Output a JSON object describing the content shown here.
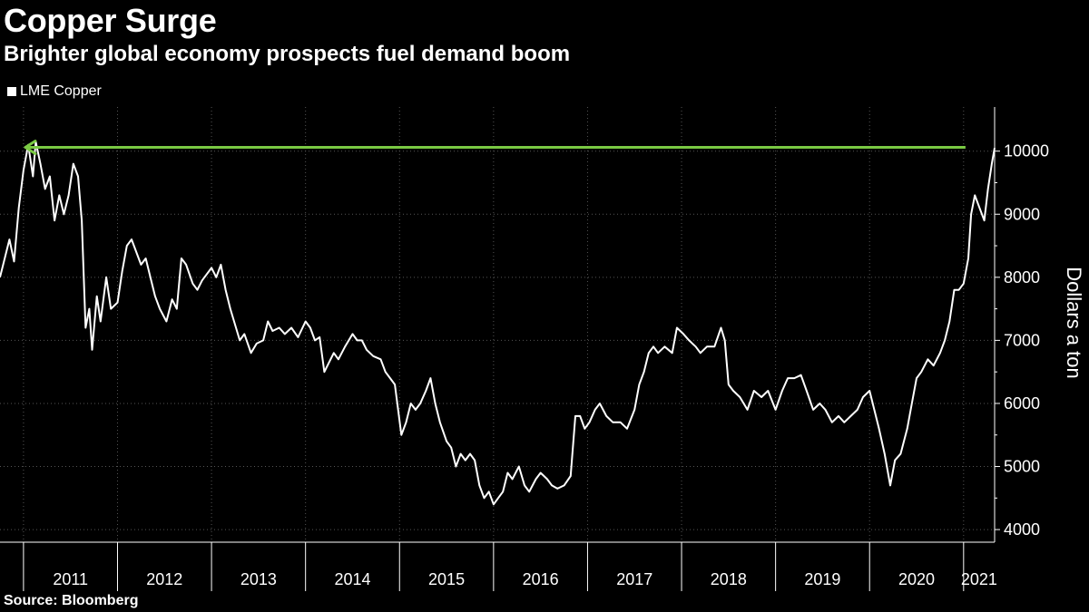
{
  "chart_data": {
    "type": "line",
    "title": "Copper Surge",
    "subtitle": "Brighter global economy prospects fuel demand boom",
    "ylabel": "Dollars a ton",
    "ylim": [
      3800,
      10700
    ],
    "xlim": [
      2010.75,
      2021.33
    ],
    "yticks": [
      4000,
      5000,
      6000,
      7000,
      8000,
      9000,
      10000
    ],
    "xtick_labels": [
      "2011",
      "2012",
      "2013",
      "2014",
      "2015",
      "2016",
      "2017",
      "2018",
      "2019",
      "2020",
      "2021"
    ],
    "grid": true,
    "legend_position": "top-left",
    "annotation": {
      "type": "arrow",
      "color": "#7ac943",
      "y": 10060,
      "x_from": 2021.02,
      "x_to": 2011.02
    },
    "series": [
      {
        "name": "LME Copper",
        "color": "#ffffff",
        "points": [
          [
            2010.75,
            8000
          ],
          [
            2010.8,
            8300
          ],
          [
            2010.85,
            8600
          ],
          [
            2010.9,
            8250
          ],
          [
            2010.95,
            9100
          ],
          [
            2011.0,
            9700
          ],
          [
            2011.05,
            10100
          ],
          [
            2011.1,
            9600
          ],
          [
            2011.13,
            10150
          ],
          [
            2011.18,
            9800
          ],
          [
            2011.23,
            9400
          ],
          [
            2011.28,
            9600
          ],
          [
            2011.33,
            8900
          ],
          [
            2011.38,
            9300
          ],
          [
            2011.43,
            9000
          ],
          [
            2011.48,
            9300
          ],
          [
            2011.53,
            9800
          ],
          [
            2011.58,
            9600
          ],
          [
            2011.62,
            8900
          ],
          [
            2011.66,
            7200
          ],
          [
            2011.7,
            7500
          ],
          [
            2011.73,
            6850
          ],
          [
            2011.78,
            7700
          ],
          [
            2011.82,
            7300
          ],
          [
            2011.88,
            8000
          ],
          [
            2011.93,
            7500
          ],
          [
            2012.0,
            7600
          ],
          [
            2012.05,
            8100
          ],
          [
            2012.1,
            8500
          ],
          [
            2012.15,
            8600
          ],
          [
            2012.2,
            8400
          ],
          [
            2012.25,
            8200
          ],
          [
            2012.3,
            8300
          ],
          [
            2012.35,
            8000
          ],
          [
            2012.4,
            7700
          ],
          [
            2012.45,
            7500
          ],
          [
            2012.52,
            7300
          ],
          [
            2012.58,
            7650
          ],
          [
            2012.63,
            7500
          ],
          [
            2012.68,
            8300
          ],
          [
            2012.73,
            8200
          ],
          [
            2012.8,
            7900
          ],
          [
            2012.85,
            7800
          ],
          [
            2012.9,
            7950
          ],
          [
            2013.0,
            8150
          ],
          [
            2013.05,
            8000
          ],
          [
            2013.1,
            8200
          ],
          [
            2013.15,
            7800
          ],
          [
            2013.2,
            7500
          ],
          [
            2013.25,
            7250
          ],
          [
            2013.3,
            7000
          ],
          [
            2013.35,
            7100
          ],
          [
            2013.42,
            6800
          ],
          [
            2013.48,
            6950
          ],
          [
            2013.55,
            7000
          ],
          [
            2013.6,
            7300
          ],
          [
            2013.65,
            7150
          ],
          [
            2013.72,
            7200
          ],
          [
            2013.78,
            7100
          ],
          [
            2013.85,
            7200
          ],
          [
            2013.92,
            7050
          ],
          [
            2014.0,
            7300
          ],
          [
            2014.05,
            7200
          ],
          [
            2014.1,
            7000
          ],
          [
            2014.15,
            7050
          ],
          [
            2014.2,
            6500
          ],
          [
            2014.25,
            6650
          ],
          [
            2014.3,
            6800
          ],
          [
            2014.35,
            6700
          ],
          [
            2014.42,
            6900
          ],
          [
            2014.5,
            7100
          ],
          [
            2014.55,
            7000
          ],
          [
            2014.6,
            7000
          ],
          [
            2014.65,
            6850
          ],
          [
            2014.72,
            6750
          ],
          [
            2014.8,
            6700
          ],
          [
            2014.85,
            6500
          ],
          [
            2014.9,
            6400
          ],
          [
            2014.95,
            6300
          ],
          [
            2015.02,
            5500
          ],
          [
            2015.07,
            5700
          ],
          [
            2015.12,
            6000
          ],
          [
            2015.17,
            5900
          ],
          [
            2015.22,
            6000
          ],
          [
            2015.28,
            6200
          ],
          [
            2015.33,
            6400
          ],
          [
            2015.38,
            6000
          ],
          [
            2015.43,
            5700
          ],
          [
            2015.5,
            5400
          ],
          [
            2015.55,
            5300
          ],
          [
            2015.6,
            5000
          ],
          [
            2015.65,
            5200
          ],
          [
            2015.7,
            5100
          ],
          [
            2015.75,
            5200
          ],
          [
            2015.8,
            5100
          ],
          [
            2015.85,
            4700
          ],
          [
            2015.9,
            4500
          ],
          [
            2015.95,
            4600
          ],
          [
            2016.0,
            4400
          ],
          [
            2016.05,
            4500
          ],
          [
            2016.1,
            4600
          ],
          [
            2016.15,
            4900
          ],
          [
            2016.2,
            4800
          ],
          [
            2016.27,
            5000
          ],
          [
            2016.33,
            4700
          ],
          [
            2016.38,
            4600
          ],
          [
            2016.45,
            4800
          ],
          [
            2016.5,
            4900
          ],
          [
            2016.57,
            4800
          ],
          [
            2016.62,
            4700
          ],
          [
            2016.68,
            4650
          ],
          [
            2016.75,
            4700
          ],
          [
            2016.82,
            4850
          ],
          [
            2016.87,
            5800
          ],
          [
            2016.92,
            5800
          ],
          [
            2016.97,
            5600
          ],
          [
            2017.02,
            5700
          ],
          [
            2017.08,
            5900
          ],
          [
            2017.13,
            6000
          ],
          [
            2017.2,
            5800
          ],
          [
            2017.27,
            5700
          ],
          [
            2017.35,
            5700
          ],
          [
            2017.42,
            5600
          ],
          [
            2017.5,
            5900
          ],
          [
            2017.55,
            6300
          ],
          [
            2017.6,
            6500
          ],
          [
            2017.65,
            6800
          ],
          [
            2017.7,
            6900
          ],
          [
            2017.75,
            6800
          ],
          [
            2017.82,
            6900
          ],
          [
            2017.9,
            6800
          ],
          [
            2017.95,
            7200
          ],
          [
            2018.02,
            7100
          ],
          [
            2018.08,
            7000
          ],
          [
            2018.15,
            6900
          ],
          [
            2018.2,
            6800
          ],
          [
            2018.27,
            6900
          ],
          [
            2018.35,
            6900
          ],
          [
            2018.42,
            7200
          ],
          [
            2018.46,
            7000
          ],
          [
            2018.5,
            6300
          ],
          [
            2018.55,
            6200
          ],
          [
            2018.62,
            6100
          ],
          [
            2018.7,
            5900
          ],
          [
            2018.77,
            6200
          ],
          [
            2018.85,
            6100
          ],
          [
            2018.92,
            6200
          ],
          [
            2019.0,
            5900
          ],
          [
            2019.07,
            6200
          ],
          [
            2019.13,
            6400
          ],
          [
            2019.2,
            6400
          ],
          [
            2019.27,
            6450
          ],
          [
            2019.33,
            6200
          ],
          [
            2019.4,
            5900
          ],
          [
            2019.47,
            6000
          ],
          [
            2019.53,
            5900
          ],
          [
            2019.6,
            5700
          ],
          [
            2019.67,
            5800
          ],
          [
            2019.73,
            5700
          ],
          [
            2019.8,
            5800
          ],
          [
            2019.87,
            5900
          ],
          [
            2019.93,
            6100
          ],
          [
            2020.0,
            6200
          ],
          [
            2020.05,
            5900
          ],
          [
            2020.1,
            5600
          ],
          [
            2020.16,
            5200
          ],
          [
            2020.22,
            4700
          ],
          [
            2020.27,
            5100
          ],
          [
            2020.33,
            5200
          ],
          [
            2020.4,
            5600
          ],
          [
            2020.45,
            6000
          ],
          [
            2020.5,
            6400
          ],
          [
            2020.55,
            6500
          ],
          [
            2020.62,
            6700
          ],
          [
            2020.68,
            6600
          ],
          [
            2020.75,
            6800
          ],
          [
            2020.8,
            7000
          ],
          [
            2020.85,
            7300
          ],
          [
            2020.9,
            7800
          ],
          [
            2020.95,
            7800
          ],
          [
            2021.0,
            7900
          ],
          [
            2021.05,
            8300
          ],
          [
            2021.08,
            9000
          ],
          [
            2021.12,
            9300
          ],
          [
            2021.17,
            9100
          ],
          [
            2021.22,
            8900
          ],
          [
            2021.26,
            9400
          ],
          [
            2021.3,
            9800
          ],
          [
            2021.33,
            10050
          ]
        ]
      }
    ]
  },
  "source_label": "Source: Bloomberg"
}
